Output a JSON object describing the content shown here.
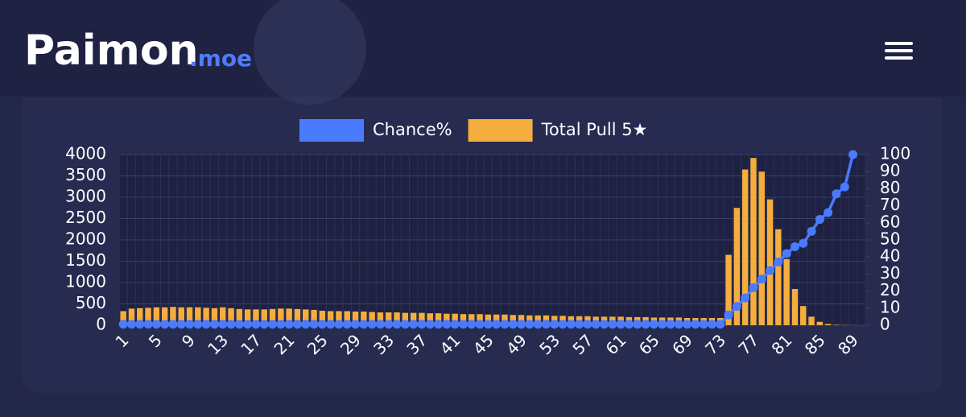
{
  "header": {
    "logo": "Paimon",
    "logo_suffix": ".moe"
  },
  "chart_data": {
    "type": "bar",
    "categories": [
      "1",
      null,
      null,
      null,
      "5",
      null,
      null,
      null,
      "9",
      null,
      null,
      null,
      "13",
      null,
      null,
      null,
      "17",
      null,
      null,
      null,
      "21",
      null,
      null,
      null,
      "25",
      null,
      null,
      null,
      "29",
      null,
      null,
      null,
      "33",
      null,
      null,
      null,
      "37",
      null,
      null,
      null,
      "41",
      null,
      null,
      null,
      "45",
      null,
      null,
      null,
      "49",
      null,
      null,
      null,
      "53",
      null,
      null,
      null,
      "57",
      null,
      null,
      null,
      "61",
      null,
      null,
      null,
      "65",
      null,
      null,
      null,
      "69",
      null,
      null,
      null,
      "73",
      null,
      null,
      null,
      "77",
      null,
      null,
      null,
      "81",
      null,
      null,
      null,
      "85",
      null,
      null,
      null,
      "89",
      null
    ],
    "series": [
      {
        "name": "Chance%",
        "type": "line",
        "axis": "y2",
        "color": "#4a7bff",
        "values": [
          0.6,
          0.6,
          0.6,
          0.6,
          0.6,
          0.6,
          0.6,
          0.6,
          0.6,
          0.6,
          0.6,
          0.6,
          0.6,
          0.6,
          0.6,
          0.6,
          0.6,
          0.6,
          0.6,
          0.6,
          0.6,
          0.6,
          0.6,
          0.6,
          0.6,
          0.6,
          0.6,
          0.6,
          0.6,
          0.6,
          0.6,
          0.6,
          0.6,
          0.6,
          0.6,
          0.6,
          0.6,
          0.6,
          0.6,
          0.6,
          0.6,
          0.6,
          0.6,
          0.6,
          0.6,
          0.6,
          0.6,
          0.6,
          0.6,
          0.6,
          0.6,
          0.6,
          0.6,
          0.6,
          0.6,
          0.6,
          0.6,
          0.6,
          0.6,
          0.6,
          0.6,
          0.6,
          0.6,
          0.6,
          0.6,
          0.6,
          0.6,
          0.6,
          0.6,
          0.6,
          0.6,
          0.6,
          0.6,
          6,
          11,
          16,
          22,
          27,
          32,
          37,
          42,
          46,
          48,
          55,
          62,
          66,
          77,
          81,
          100,
          null
        ]
      },
      {
        "name": "Total Pull 5★",
        "type": "bar",
        "color": "#f5ae3d",
        "values": [
          330,
          390,
          400,
          410,
          420,
          420,
          430,
          420,
          420,
          420,
          410,
          400,
          420,
          400,
          380,
          370,
          370,
          370,
          380,
          390,
          390,
          380,
          370,
          360,
          340,
          330,
          330,
          330,
          320,
          320,
          310,
          300,
          300,
          300,
          290,
          290,
          290,
          280,
          280,
          270,
          270,
          260,
          260,
          260,
          250,
          250,
          250,
          240,
          240,
          230,
          230,
          230,
          220,
          220,
          210,
          210,
          210,
          200,
          200,
          200,
          200,
          190,
          190,
          190,
          180,
          180,
          180,
          180,
          170,
          170,
          170,
          170,
          170,
          1650,
          2750,
          3650,
          3920,
          3600,
          2950,
          2250,
          1550,
          850,
          450,
          200,
          80,
          30,
          10,
          5,
          2,
          0
        ]
      }
    ],
    "ylim": [
      0,
      4000
    ],
    "yticks": [
      0,
      500,
      1000,
      1500,
      2000,
      2500,
      3000,
      3500,
      4000
    ],
    "y2lim": [
      0,
      100
    ],
    "y2ticks": [
      0,
      10,
      20,
      30,
      40,
      50,
      60,
      70,
      80,
      90,
      100
    ],
    "grid": true
  }
}
